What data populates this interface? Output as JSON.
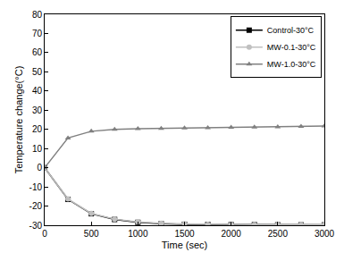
{
  "chart_data": {
    "type": "line",
    "x_label": "Time (sec)",
    "y_label": "Temperature change(°C)",
    "x": [
      0,
      250,
      500,
      750,
      1000,
      1250,
      1500,
      1750,
      2000,
      2250,
      2500,
      2750,
      3000
    ],
    "series": [
      {
        "name": "Control-30°C",
        "color": "#000000",
        "marker": "square",
        "values": [
          0,
          -16.5,
          -24,
          -27,
          -28.5,
          -29.2,
          -29.5,
          -29.6,
          -29.7,
          -29.7,
          -29.8,
          -29.8,
          -29.8
        ]
      },
      {
        "name": "MW-0.1-30°C",
        "color": "#c0c0c0",
        "marker": "circle",
        "values": [
          0,
          -16.3,
          -23.8,
          -26.8,
          -28.3,
          -29,
          -29.3,
          -29.5,
          -29.6,
          -29.6,
          -29.7,
          -29.7,
          -29.7
        ]
      },
      {
        "name": "MW-1.0-30°C",
        "color": "#808080",
        "marker": "triangle-up",
        "values": [
          0,
          15.5,
          19,
          20,
          20.3,
          20.5,
          20.7,
          20.8,
          21,
          21.1,
          21.3,
          21.5,
          21.7
        ]
      }
    ],
    "xlim": [
      0,
      3000
    ],
    "xticks": [
      0,
      500,
      1000,
      1500,
      2000,
      2500,
      3000
    ],
    "ylim": [
      -30,
      80
    ],
    "yticks": [
      -30,
      -20,
      -10,
      0,
      10,
      20,
      30,
      40,
      50,
      60,
      70,
      80
    ],
    "grid": false,
    "legend": "top-right"
  }
}
